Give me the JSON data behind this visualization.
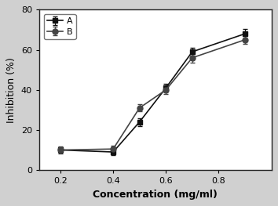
{
  "series_A": {
    "x": [
      0.2,
      0.4,
      0.5,
      0.6,
      0.7,
      0.9
    ],
    "y": [
      10.0,
      9.0,
      24.0,
      41.0,
      59.0,
      68.0
    ],
    "yerr": [
      1.5,
      1.5,
      2.0,
      2.0,
      2.0,
      2.5
    ],
    "label": "A",
    "marker": "s",
    "color": "#111111",
    "markersize": 5,
    "linewidth": 1.2
  },
  "series_B": {
    "x": [
      0.2,
      0.4,
      0.5,
      0.6,
      0.7,
      0.9
    ],
    "y": [
      10.0,
      10.5,
      31.0,
      40.0,
      56.0,
      65.0
    ],
    "yerr": [
      1.8,
      1.5,
      1.8,
      2.0,
      2.5,
      2.0
    ],
    "label": "B",
    "marker": "o",
    "color": "#444444",
    "markersize": 5,
    "linewidth": 1.2
  },
  "xlabel": "Concentration (mg/ml)",
  "ylabel": "Inhibition (%)",
  "xlim": [
    0.12,
    1.0
  ],
  "ylim": [
    0,
    80
  ],
  "xticks": [
    0.2,
    0.4,
    0.6,
    0.8
  ],
  "yticks": [
    0,
    20,
    40,
    60,
    80
  ],
  "legend_loc": "upper left",
  "plot_bg_color": "#f0f0f0",
  "fig_bg_color": "#d0d0d0",
  "axes_linewidth": 1.0,
  "font_size": 9,
  "legend_fontsize": 8
}
